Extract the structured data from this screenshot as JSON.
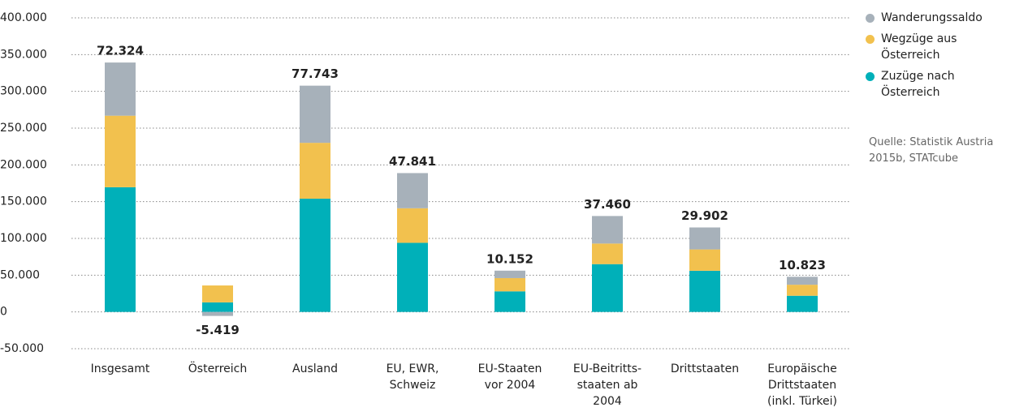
{
  "chart_data": {
    "type": "stacked-bar",
    "categories": [
      "Insgesamt",
      "Österreich",
      "Ausland",
      "EU, EWR,\nSchweiz",
      "EU-Staaten\nvor 2004",
      "EU-Beitritts-\nstaaten ab\n2004",
      "Drittstaaten",
      "Europäische\nDrittstaaten\n(inkl. Türkei)"
    ],
    "series": [
      {
        "name": "Zuzüge nach Österreich",
        "color": "#00b0b9",
        "values": [
          169600,
          13000,
          154000,
          94000,
          28000,
          65000,
          56000,
          22000
        ]
      },
      {
        "name": "Wegzüge aus Österreich",
        "color": "#f2c14e",
        "values": [
          97300,
          23000,
          76000,
          47000,
          18000,
          28000,
          29000,
          15000
        ]
      },
      {
        "name": "Wanderungssaldo",
        "color": "#a7b1ba",
        "values": [
          72324,
          -5419,
          77743,
          47841,
          10152,
          37460,
          29902,
          10823
        ],
        "value_labels": [
          "72.324",
          "-5.419",
          "77.743",
          "47.841",
          "10.152",
          "37.460",
          "29.902",
          "10.823"
        ]
      }
    ],
    "ylim": [
      -50000,
      400000
    ],
    "yticks": [
      {
        "value": -50000,
        "label": "-50.000"
      },
      0,
      {
        "value": 50000,
        "label": "50.000"
      },
      {
        "value": 100000,
        "label": "100.000"
      },
      {
        "value": 150000,
        "label": "150.000"
      },
      {
        "value": 200000,
        "label": "200.000"
      },
      {
        "value": 250000,
        "label": "250.000"
      },
      {
        "value": 300000,
        "label": "300.000"
      },
      {
        "value": 350000,
        "label": "350.000"
      },
      {
        "value": 400000,
        "label": "400.000"
      }
    ],
    "grid": true,
    "legend": "right",
    "note": "Quelle: Statistik Austria 2015b, STATcube"
  }
}
